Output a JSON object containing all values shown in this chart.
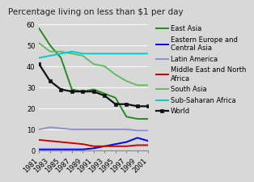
{
  "title": "Percentage living on less than $1 per day",
  "years": [
    1981,
    1983,
    1985,
    1987,
    1989,
    1991,
    1993,
    1995,
    1997,
    1999,
    2001
  ],
  "series": [
    {
      "label": "East Asia",
      "values": [
        58,
        50,
        44,
        29,
        28,
        29,
        27,
        25,
        16,
        15,
        15
      ],
      "color": "#228B22",
      "marker": null,
      "linewidth": 1.4
    },
    {
      "label": "Eastern Europe and\nCentral Asia",
      "values": [
        0.5,
        0.5,
        0.5,
        0.5,
        0.5,
        1.0,
        2.0,
        3.0,
        4.0,
        6.0,
        4.5
      ],
      "color": "#0000EE",
      "marker": null,
      "linewidth": 1.4
    },
    {
      "label": "Latin America",
      "values": [
        10,
        11,
        10.5,
        10,
        10,
        10,
        10,
        10,
        10,
        9.5,
        9.5
      ],
      "color": "#9090CC",
      "marker": null,
      "linewidth": 1.4
    },
    {
      "label": "Middle East and North\nAfrica",
      "values": [
        5.0,
        4.5,
        4.0,
        3.5,
        3.0,
        2.0,
        2.0,
        2.0,
        2.0,
        2.5,
        2.5
      ],
      "color": "#CC0000",
      "marker": null,
      "linewidth": 1.4
    },
    {
      "label": "South Asia",
      "values": [
        51,
        47,
        47,
        46,
        45,
        41,
        40,
        36,
        33,
        31,
        31
      ],
      "color": "#66BB66",
      "marker": null,
      "linewidth": 1.4
    },
    {
      "label": "Sub-Saharan Africa",
      "values": [
        44,
        45,
        46,
        47,
        46,
        46,
        46,
        46,
        46,
        46,
        46
      ],
      "color": "#00CCCC",
      "marker": null,
      "linewidth": 1.4
    },
    {
      "label": "World",
      "values": [
        41,
        33,
        29,
        28,
        28,
        28,
        26,
        22,
        22,
        21,
        21
      ],
      "color": "#111111",
      "marker": "s",
      "linewidth": 1.6
    }
  ],
  "ylim": [
    0,
    60
  ],
  "yticks": [
    0,
    10,
    20,
    30,
    40,
    50,
    60
  ],
  "bg_color": "#d8d8d8",
  "plot_bg": "#d8d8d8",
  "title_fontsize": 7.5,
  "tick_fontsize": 6,
  "legend_fontsize": 6
}
